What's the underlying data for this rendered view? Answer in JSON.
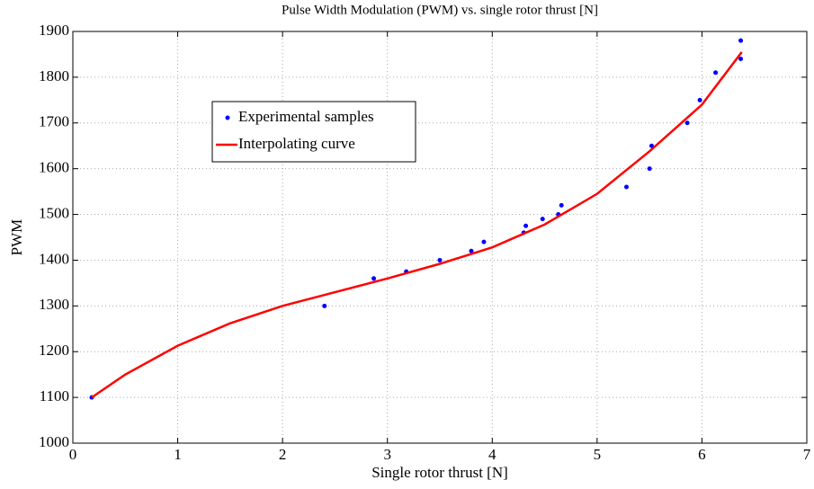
{
  "chart_data": {
    "type": "scatter",
    "title": "Pulse Width Modulation (PWM) vs. single rotor thrust [N]",
    "x_label": "Single rotor thrust [N]",
    "y_label": "PWM",
    "xlim": [
      0,
      7
    ],
    "ylim": [
      1000,
      1900
    ],
    "xticks": [
      0,
      1,
      2,
      3,
      4,
      5,
      6,
      7
    ],
    "yticks": [
      1000,
      1100,
      1200,
      1300,
      1400,
      1500,
      1600,
      1700,
      1800,
      1900
    ],
    "grid": true,
    "series": [
      {
        "name": "Experimental samples",
        "type": "scatter",
        "color": "#0000ff",
        "x": [
          0.18,
          2.4,
          2.87,
          3.18,
          3.5,
          3.8,
          3.92,
          4.3,
          4.32,
          4.48,
          4.63,
          4.66,
          5.28,
          5.5,
          5.52,
          5.86,
          5.98,
          6.13,
          6.37,
          6.37
        ],
        "values": [
          1100,
          1300,
          1360,
          1375,
          1400,
          1420,
          1440,
          1460,
          1475,
          1490,
          1500,
          1520,
          1560,
          1600,
          1650,
          1700,
          1750,
          1810,
          1840,
          1880
        ]
      },
      {
        "name": "Interpolating curve",
        "type": "line",
        "color": "#ff0000",
        "x": [
          0.18,
          0.5,
          1,
          1.5,
          2,
          2.5,
          3,
          3.5,
          4,
          4.5,
          5,
          5.5,
          6,
          6.38
        ],
        "values": [
          1100,
          1150,
          1213,
          1262,
          1300,
          1330,
          1360,
          1392,
          1428,
          1478,
          1545,
          1638,
          1740,
          1855
        ]
      }
    ]
  }
}
